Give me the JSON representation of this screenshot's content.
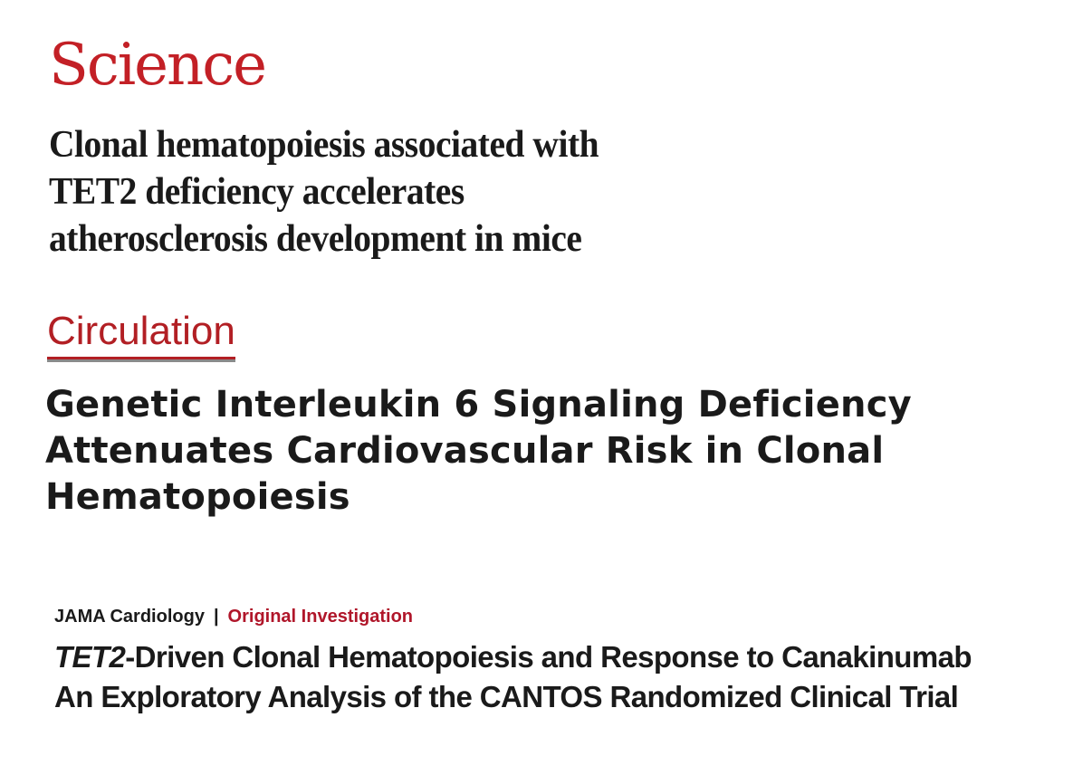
{
  "science": {
    "journal": "Science",
    "title_lines": [
      "Clonal hematopoiesis associated with",
      "TET2 deficiency accelerates",
      "atherosclerosis development in mice"
    ]
  },
  "circulation": {
    "journal": "Circulation",
    "title_lines": [
      "Genetic Interleukin 6 Signaling Deficiency",
      "Attenuates Cardiovascular Risk in Clonal",
      "Hematopoiesis"
    ]
  },
  "jama": {
    "journal": "JAMA Cardiology",
    "separator": "|",
    "article_type": "Original Investigation",
    "title_italic": "TET2",
    "title_rest": "-Driven Clonal Hematopoiesis and Response to Canakinumab",
    "subtitle": "An Exploratory Analysis of the CANTOS Randomized Clinical Trial"
  },
  "colors": {
    "science_red": "#c32026",
    "circulation_red": "#b21f24",
    "jama_red": "#b0162a",
    "text": "#1a1a1a"
  }
}
